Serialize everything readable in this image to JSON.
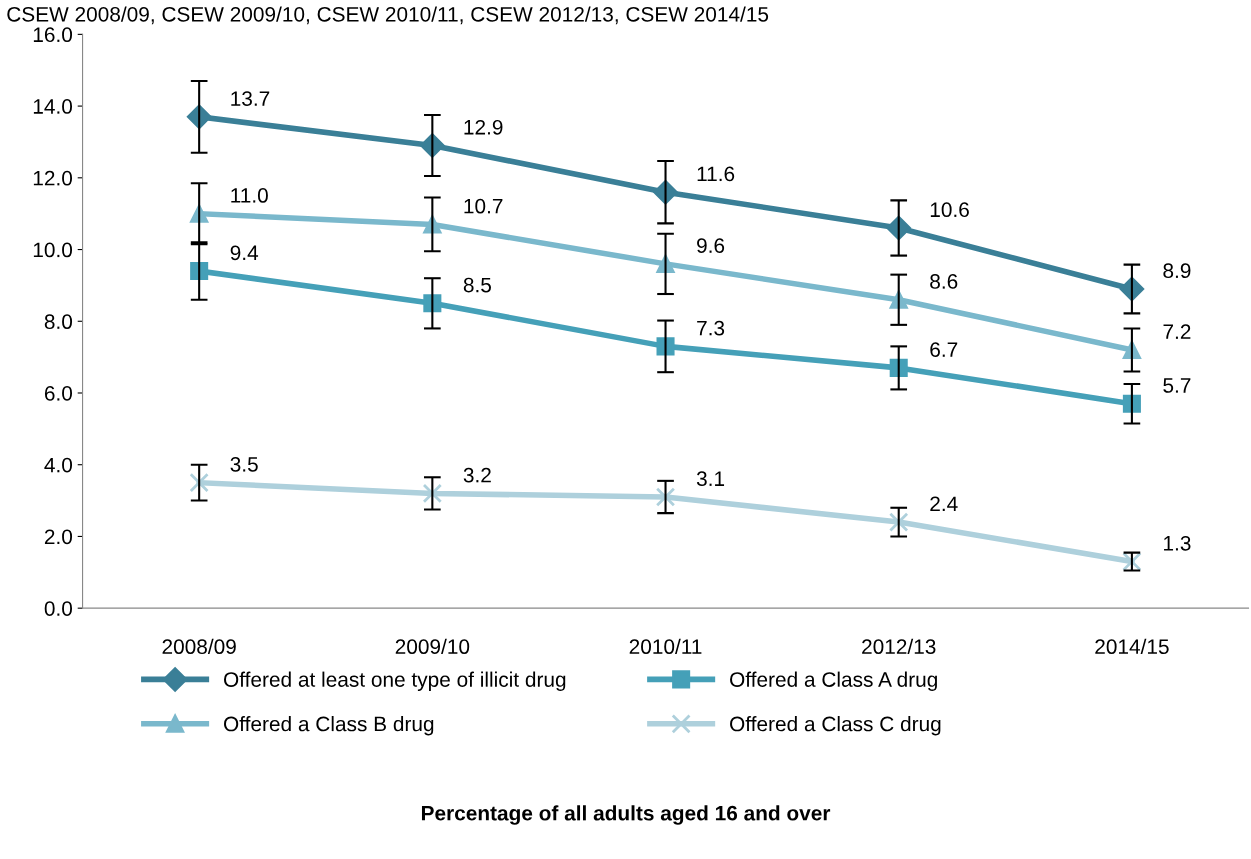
{
  "chart_data": {
    "type": "line",
    "title": "CSEW 2008/09, CSEW 2009/10, CSEW 2010/11, CSEW 2012/13, CSEW 2014/15",
    "annotations": [
      "Percentage of all adults aged 16 and over"
    ],
    "categories": [
      "2008/09",
      "2009/10",
      "2010/11",
      "2012/13",
      "2014/15"
    ],
    "series": [
      {
        "name": "Offered at least one type of illicit drug",
        "color": "#3a7f97",
        "marker": "diamond",
        "values": [
          13.7,
          12.9,
          11.6,
          10.6,
          8.9
        ],
        "value_labels": [
          "13.7",
          "12.9",
          "11.6",
          "10.6",
          "8.9"
        ],
        "errors": [
          1.0,
          0.85,
          0.87,
          0.77,
          0.68
        ]
      },
      {
        "name": "Offered a Class A drug",
        "color": "#45a0b8",
        "marker": "square",
        "values": [
          9.4,
          8.5,
          7.3,
          6.7,
          5.7
        ],
        "value_labels": [
          "9.4",
          "8.5",
          "7.3",
          "6.7",
          "5.7"
        ],
        "errors": [
          0.8,
          0.7,
          0.72,
          0.6,
          0.55
        ]
      },
      {
        "name": "Offered a Class B drug",
        "color": "#7ab8cc",
        "marker": "triangle",
        "values": [
          11.0,
          10.7,
          9.6,
          8.6,
          7.2
        ],
        "value_labels": [
          "11.0",
          "10.7",
          "9.6",
          "8.6",
          "7.2"
        ],
        "errors": [
          0.85,
          0.75,
          0.84,
          0.7,
          0.6
        ]
      },
      {
        "name": "Offered a Class C drug",
        "color": "#aed0dc",
        "marker": "cross",
        "values": [
          3.5,
          3.2,
          3.1,
          2.4,
          1.3
        ],
        "value_labels": [
          "3.5",
          "3.2",
          "3.1",
          "2.4",
          "1.3"
        ],
        "errors": [
          0.5,
          0.45,
          0.45,
          0.4,
          0.25
        ]
      }
    ],
    "ylim": [
      0,
      16
    ],
    "yticks": [
      {
        "value": 0,
        "label": "0.0"
      },
      {
        "value": 2,
        "label": "2.0"
      },
      {
        "value": 4,
        "label": "4.0"
      },
      {
        "value": 6,
        "label": "6.0"
      },
      {
        "value": 8,
        "label": "8.0"
      },
      {
        "value": 10,
        "label": "10.0"
      },
      {
        "value": 12,
        "label": "12.0"
      },
      {
        "value": 14,
        "label": "14.0"
      },
      {
        "value": 16,
        "label": "16.0"
      }
    ],
    "grid": false,
    "legend": "bottom",
    "line_style": "solid"
  }
}
